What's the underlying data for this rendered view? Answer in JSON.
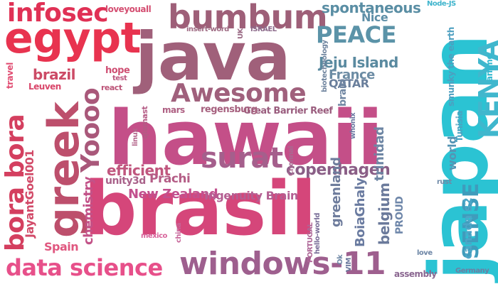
{
  "word_cloud": {
    "words": [
      {
        "id": "japan",
        "text": "japan",
        "color": "#2bc3d3"
      },
      {
        "id": "hawaii",
        "text": "hawaii",
        "color": "#c44f88"
      },
      {
        "id": "brasil",
        "text": "brasil",
        "color": "#d5467a"
      },
      {
        "id": "java",
        "text": "java",
        "color": "#a0607a"
      },
      {
        "id": "egypt",
        "text": "egypt",
        "color": "#e8334f"
      },
      {
        "id": "greek",
        "text": "greek",
        "color": "#bd4f6c"
      },
      {
        "id": "bumbum",
        "text": "bumbum",
        "color": "#9e5f78"
      },
      {
        "id": "infosec",
        "text": "infosec",
        "color": "#e03155"
      },
      {
        "id": "windows-11",
        "text": "windows-11",
        "color": "#9e5f8e"
      },
      {
        "id": "data-science",
        "text": "data science",
        "color": "#e7508a"
      },
      {
        "id": "bora-bora",
        "text": "bora bora",
        "color": "#d43f5f"
      },
      {
        "id": "awesome",
        "text": "Awesome",
        "color": "#a0607c"
      },
      {
        "id": "surat",
        "text": "surat",
        "color": "#a55f8c"
      },
      {
        "id": "yoooo",
        "text": "Yoooo",
        "color": "#a9587a"
      },
      {
        "id": "kenya",
        "text": "KENYA",
        "color": "#40b7cd"
      },
      {
        "id": "peace",
        "text": "PEACE",
        "color": "#5b93a8"
      },
      {
        "id": "sense",
        "text": "SENSE",
        "color": "#3f9cbc"
      },
      {
        "id": "copenhagen",
        "text": "copenhagen",
        "color": "#8a5e86"
      },
      {
        "id": "spontaneous",
        "text": "spontaneous",
        "color": "#5a8ea4"
      },
      {
        "id": "jeju-island",
        "text": "Jeju Island",
        "color": "#5a8aa0"
      },
      {
        "id": "france",
        "text": "France",
        "color": "#6c8ca4"
      },
      {
        "id": "qatar",
        "text": "QATAR",
        "color": "#6a7f9c"
      },
      {
        "id": "efficient",
        "text": "efficient",
        "color": "#c0567e"
      },
      {
        "id": "brazil",
        "text": "brazil",
        "color": "#cc4b66"
      },
      {
        "id": "chemistry",
        "text": "chemistry",
        "color": "#c25288"
      },
      {
        "id": "greenland",
        "text": "greenland",
        "color": "#6e7c9c"
      },
      {
        "id": "belgium",
        "text": "belgium",
        "color": "#6b7a9b"
      },
      {
        "id": "new-zealand",
        "text": "New Zealand",
        "color": "#c2508e"
      },
      {
        "id": "ingenuity-brain",
        "text": "Ingenuity Brain",
        "color": "#b45f92"
      },
      {
        "id": "boiaghaly",
        "text": "BoiaGhaly",
        "color": "#6a7ba0"
      },
      {
        "id": "jayantgoel001",
        "text": "JayantGoel001",
        "color": "#d24a68"
      },
      {
        "id": "trinidad",
        "text": "trinidad",
        "color": "#6e86a4"
      },
      {
        "id": "world",
        "text": "world",
        "color": "#5494b4"
      },
      {
        "id": "canada-s2",
        "text": "canada s2",
        "color": "#4ca6c8"
      },
      {
        "id": "spain",
        "text": "Spain",
        "color": "#e0577f"
      },
      {
        "id": "prachi",
        "text": "Prachi",
        "color": "#b45d86"
      },
      {
        "id": "unity3d",
        "text": "unity3d",
        "color": "#a9628a"
      },
      {
        "id": "proud",
        "text": "PROUD",
        "color": "#6f87aa"
      },
      {
        "id": "nice",
        "text": "Nice",
        "color": "#5e8fa7"
      },
      {
        "id": "braid",
        "text": "braid",
        "color": "#7086a2"
      },
      {
        "id": "great-barrier-reef",
        "text": "Great Barrier Reef",
        "color": "#9a5d7e"
      },
      {
        "id": "regensburg",
        "text": "regensburg",
        "color": "#a6607e"
      },
      {
        "id": "smunky-the-earth",
        "text": "smunky the earth",
        "color": "#4d9fc0"
      },
      {
        "id": "tunisia",
        "text": "Tunisia",
        "color": "#4aa3c2"
      },
      {
        "id": "anime",
        "text": "anime",
        "color": "#34b8d0"
      },
      {
        "id": "mars",
        "text": "mars",
        "color": "#ae5f82"
      },
      {
        "id": "hope",
        "text": "hope",
        "color": "#cf4f73"
      },
      {
        "id": "loveyouall",
        "text": "loveyouall",
        "color": "#d44e71"
      },
      {
        "id": "leuven",
        "text": "Leuven",
        "color": "#d9466a"
      },
      {
        "id": "travel",
        "text": "travel",
        "color": "#e14d72"
      },
      {
        "id": "react",
        "text": "react",
        "color": "#bc5478"
      },
      {
        "id": "test",
        "text": "test",
        "color": "#bd5880"
      },
      {
        "id": "qiamast",
        "text": "qiamast",
        "color": "#b45a84"
      },
      {
        "id": "linux",
        "text": "linux",
        "color": "#b4678c"
      },
      {
        "id": "chennai",
        "text": "Chennai",
        "color": "#a96a92"
      },
      {
        "id": "whonix",
        "text": "whonix",
        "color": "#6b78a2"
      },
      {
        "id": "hello-world",
        "text": "hello-world",
        "color": "#7a6e98"
      },
      {
        "id": "ok",
        "text": "Ok",
        "color": "#6f88a6"
      },
      {
        "id": "vim",
        "text": "VIM",
        "color": "#6c7a9e"
      },
      {
        "id": "rust",
        "text": "rust",
        "color": "#6f8aa8"
      },
      {
        "id": "love",
        "text": "love",
        "color": "#6d86a6"
      },
      {
        "id": "assembly",
        "text": "assembly",
        "color": "#8a6690"
      },
      {
        "id": "germany",
        "text": "Germany",
        "color": "#6e7ea2"
      },
      {
        "id": "portugal",
        "text": "PORTUGAL",
        "color": "#ad6596"
      },
      {
        "id": "china",
        "text": "china",
        "color": "#c7669a"
      },
      {
        "id": "mexico",
        "text": "mexico",
        "color": "#d8629a"
      },
      {
        "id": "insert-word",
        "text": "insert-word",
        "color": "#9e6a82"
      },
      {
        "id": "uk",
        "text": "UK",
        "color": "#9a6a84"
      },
      {
        "id": "israel",
        "text": "ISRAEL",
        "color": "#8c6a8a"
      },
      {
        "id": "biotechnology",
        "text": "biotechnology",
        "color": "#6f849e"
      },
      {
        "id": "node-js",
        "text": "Node-JS",
        "color": "#3fb4cc"
      }
    ]
  }
}
